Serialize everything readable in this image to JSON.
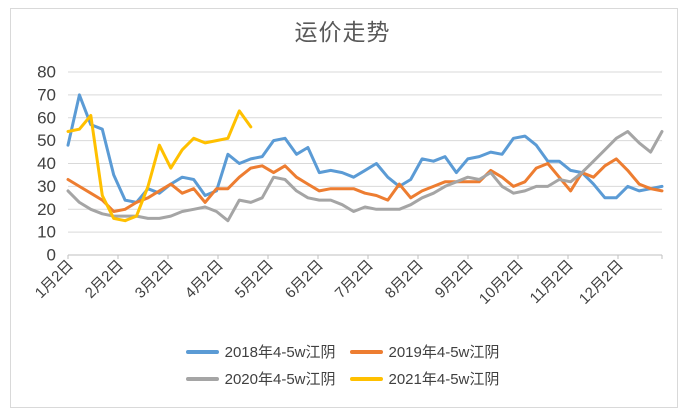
{
  "chart_data": {
    "type": "line",
    "title": "运价走势",
    "xlabel": "",
    "ylabel": "",
    "ylim": [
      0,
      80
    ],
    "y_ticks": [
      0,
      10,
      20,
      30,
      40,
      50,
      60,
      70,
      80
    ],
    "x_tick_labels": [
      "1月2日",
      "2月2日",
      "3月2日",
      "4月2日",
      "5月2日",
      "6月2日",
      "7月2日",
      "8月2日",
      "9月2日",
      "10月2日",
      "11月2日",
      "12月2日"
    ],
    "x_unit": "week_index_from_jan2",
    "grid": "horizontal",
    "legend_position": "bottom-two-rows",
    "colors": {
      "grid": "#D9D9D9",
      "axis": "#BFBFBF",
      "tick_text": "#404040",
      "title_text": "#595959",
      "frame_border": "#D9D9D9",
      "background": "#FFFFFF"
    },
    "series": [
      {
        "name": "2018年4-5w江阴",
        "color": "#5B9BD5",
        "values": [
          48,
          70,
          57,
          55,
          35,
          24,
          23,
          29,
          27,
          31,
          34,
          33,
          26,
          28,
          44,
          40,
          42,
          43,
          50,
          51,
          44,
          47,
          36,
          37,
          36,
          34,
          37,
          40,
          34,
          30,
          33,
          42,
          41,
          43,
          36,
          42,
          43,
          45,
          44,
          51,
          52,
          48,
          41,
          41,
          37,
          36,
          31,
          25,
          25,
          30,
          28,
          29,
          30
        ]
      },
      {
        "name": "2019年4-5w江阴",
        "color": "#ED7D31",
        "values": [
          33,
          30,
          27,
          24,
          19,
          20,
          23,
          25,
          28,
          31,
          27,
          29,
          23,
          29,
          29,
          34,
          38,
          39,
          36,
          39,
          34,
          31,
          28,
          29,
          29,
          29,
          27,
          26,
          24,
          31,
          25,
          28,
          30,
          32,
          32,
          32,
          32,
          37,
          34,
          30,
          32,
          38,
          40,
          34,
          28,
          36,
          34,
          39,
          42,
          37,
          31,
          29,
          28
        ]
      },
      {
        "name": "2020年4-5w江阴",
        "color": "#A5A5A5",
        "values": [
          28,
          23,
          20,
          18,
          17,
          17,
          17,
          16,
          16,
          17,
          19,
          20,
          21,
          19,
          15,
          24,
          23,
          25,
          34,
          33,
          28,
          25,
          24,
          24,
          22,
          19,
          21,
          20,
          20,
          20,
          22,
          25,
          27,
          30,
          32,
          34,
          33,
          36,
          30,
          27,
          28,
          30,
          30,
          33,
          32,
          36,
          41,
          46,
          51,
          54,
          49,
          45,
          54
        ]
      },
      {
        "name": "2021年4-5w江阴",
        "color": "#FFC000",
        "values": [
          54,
          55,
          61,
          26,
          16,
          15,
          17,
          30,
          48,
          38,
          46,
          51,
          49,
          50,
          51,
          63,
          56
        ]
      }
    ]
  }
}
